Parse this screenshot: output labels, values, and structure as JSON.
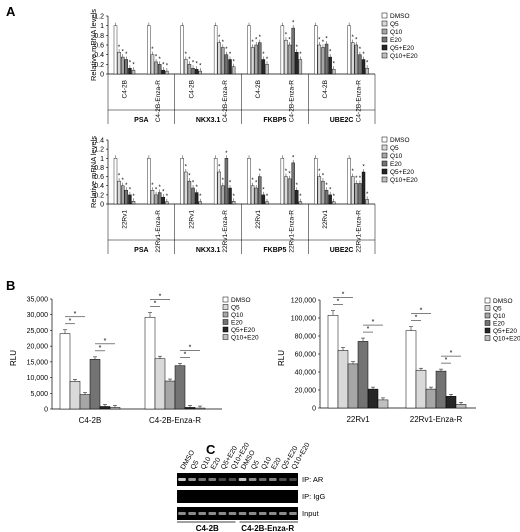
{
  "panel_letters": [
    "A",
    "B",
    "C"
  ],
  "legend": {
    "entries": [
      "DMSO",
      "Q5",
      "Q10",
      "E20",
      "Q5+E20",
      "Q10+E20"
    ],
    "colors": [
      "#ffffff",
      "#d9d9d9",
      "#a6a6a6",
      "#737373",
      "#262626",
      "#bfbfbf"
    ]
  },
  "chart_data": [
    {
      "panel": "A",
      "type": "bar",
      "ylabel": "Relative mRNA levels",
      "ylim": [
        0,
        1.2
      ],
      "yticks": [
        "0",
        "0.2",
        "0.4",
        "0.6",
        "0.8",
        "1",
        "1.2"
      ],
      "genes": [
        "PSA",
        "NKX3.1",
        "FKBP5",
        "UBE2C"
      ],
      "cell_lines": [
        "C4-2B",
        "C4-2B-Enza-R"
      ],
      "series": [
        {
          "name": "DMSO",
          "values": [
            [
              1,
              1
            ],
            [
              1,
              1
            ],
            [
              1,
              1
            ],
            [
              1,
              1
            ]
          ]
        },
        {
          "name": "Q5",
          "values": [
            [
              0.45,
              0.4
            ],
            [
              0.3,
              0.65
            ],
            [
              0.55,
              0.7
            ],
            [
              0.6,
              0.65
            ]
          ]
        },
        {
          "name": "Q10",
          "values": [
            [
              0.35,
              0.25
            ],
            [
              0.2,
              0.55
            ],
            [
              0.6,
              0.6
            ],
            [
              0.55,
              0.6
            ]
          ]
        },
        {
          "name": "E20",
          "values": [
            [
              0.3,
              0.2
            ],
            [
              0.12,
              0.4
            ],
            [
              0.65,
              0.95
            ],
            [
              0.62,
              0.4
            ]
          ]
        },
        {
          "name": "Q5+E20",
          "values": [
            [
              0.12,
              0.08
            ],
            [
              0.1,
              0.3
            ],
            [
              0.3,
              0.45
            ],
            [
              0.35,
              0.3
            ]
          ]
        },
        {
          "name": "Q10+E20",
          "values": [
            [
              0.08,
              0.06
            ],
            [
              0.06,
              0.15
            ],
            [
              0.2,
              0.3
            ],
            [
              0.1,
              0.12
            ]
          ]
        }
      ]
    },
    {
      "panel": "A",
      "type": "bar",
      "ylabel": "Relative mRNA levels",
      "ylim": [
        0,
        1.4
      ],
      "yticks": [
        "0",
        "0.2",
        "0.4",
        "0.6",
        "0.8",
        "1",
        "1.2",
        "1.4"
      ],
      "genes": [
        "PSA",
        "NKX3.1",
        "FKBP5",
        "UBE2C"
      ],
      "cell_lines": [
        "22Rv1",
        "22Rv1-Enza-R"
      ],
      "series": [
        {
          "name": "DMSO",
          "values": [
            [
              1,
              1
            ],
            [
              1,
              1
            ],
            [
              1,
              1
            ],
            [
              1,
              1
            ]
          ]
        },
        {
          "name": "Q5",
          "values": [
            [
              0.5,
              0.3
            ],
            [
              0.7,
              0.7
            ],
            [
              0.4,
              0.6
            ],
            [
              0.6,
              0.6
            ]
          ]
        },
        {
          "name": "Q10",
          "values": [
            [
              0.4,
              0.2
            ],
            [
              0.5,
              0.4
            ],
            [
              0.35,
              0.55
            ],
            [
              0.5,
              0.45
            ]
          ]
        },
        {
          "name": "E20",
          "values": [
            [
              0.3,
              0.25
            ],
            [
              0.35,
              1.0
            ],
            [
              0.6,
              0.9
            ],
            [
              0.3,
              0.45
            ]
          ]
        },
        {
          "name": "Q5+E20",
          "values": [
            [
              0.2,
              0.15
            ],
            [
              0.25,
              0.35
            ],
            [
              0.2,
              0.3
            ],
            [
              0.2,
              0.7
            ]
          ]
        },
        {
          "name": "Q10+E20",
          "values": [
            [
              0.06,
              0.05
            ],
            [
              0.05,
              0.06
            ],
            [
              0.05,
              0.05
            ],
            [
              0.05,
              0.1
            ]
          ]
        }
      ]
    },
    {
      "panel": "B",
      "type": "bar",
      "ylabel": "RLU",
      "ylim": [
        0,
        35000
      ],
      "yticks": [
        "0",
        "5,000",
        "10,000",
        "15,000",
        "20,000",
        "25,000",
        "30,000",
        "35,000"
      ],
      "categories": [
        "C4-2B",
        "C4-2B-Enza-R"
      ],
      "series": [
        {
          "name": "DMSO",
          "values": [
            24000,
            29200
          ]
        },
        {
          "name": "Q5",
          "values": [
            8800,
            16000
          ]
        },
        {
          "name": "Q10",
          "values": [
            4600,
            8900
          ]
        },
        {
          "name": "E20",
          "values": [
            15800,
            13800
          ]
        },
        {
          "name": "Q5+E20",
          "values": [
            800,
            500
          ]
        },
        {
          "name": "Q10+E20",
          "values": [
            500,
            300
          ]
        }
      ]
    },
    {
      "panel": "B",
      "type": "bar",
      "ylabel": "RLU",
      "ylim": [
        0,
        120000
      ],
      "yticks": [
        "0",
        "20,000",
        "40,000",
        "60,000",
        "80,000",
        "100,000",
        "120,000"
      ],
      "categories": [
        "22Rv1",
        "22Rv1-Enza-R"
      ],
      "series": [
        {
          "name": "DMSO",
          "values": [
            103000,
            86000
          ]
        },
        {
          "name": "Q5",
          "values": [
            64000,
            42000
          ]
        },
        {
          "name": "Q10",
          "values": [
            49000,
            21000
          ]
        },
        {
          "name": "E20",
          "values": [
            74000,
            41000
          ]
        },
        {
          "name": "Q5+E20",
          "values": [
            21000,
            13000
          ]
        },
        {
          "name": "Q10+E20",
          "values": [
            9000,
            4000
          ]
        }
      ]
    }
  ],
  "blot": {
    "lane_labels": [
      "DMSO",
      "Q5",
      "Q10",
      "E20",
      "Q5+E20",
      "Q10+E20"
    ],
    "rows": [
      "IP: AR",
      "IP: IgG",
      "Input"
    ],
    "groups": [
      "C4-2B",
      "C4-2B-Enza-R"
    ],
    "ar_intensity": [
      0.9,
      0.6,
      0.4,
      0.45,
      0.15,
      0.2,
      0.85,
      0.55,
      0.35,
      0.5,
      0.2,
      0.15
    ]
  }
}
